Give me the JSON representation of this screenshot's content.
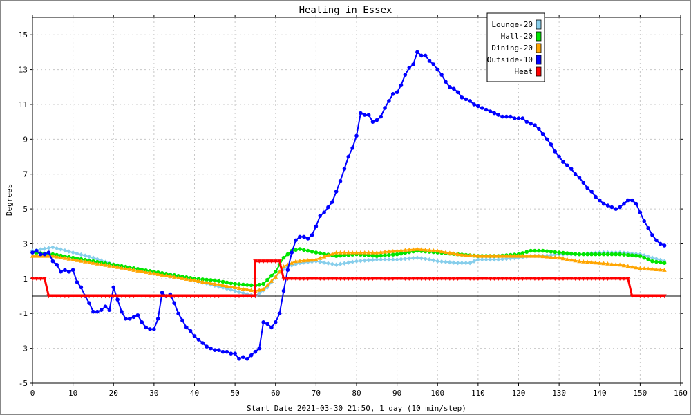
{
  "chart_data": {
    "type": "line",
    "title": "Heating in Essex",
    "xlabel": "Start Date 2021-03-30 21:50, 1 day (10 min/step)",
    "ylabel": "Degrees",
    "xlim": [
      0,
      160
    ],
    "ylim": [
      -5,
      16
    ],
    "xticks": [
      0,
      10,
      20,
      30,
      40,
      50,
      60,
      70,
      80,
      90,
      100,
      110,
      120,
      130,
      140,
      150,
      160
    ],
    "yticks": [
      -5,
      -3,
      -1,
      1,
      3,
      5,
      7,
      9,
      11,
      13,
      15
    ],
    "grid": true,
    "legend_position": "top-right",
    "series": [
      {
        "name": "Lounge-20",
        "color": "#87ceeb",
        "marker": "diamond",
        "points": [
          [
            0,
            2.6
          ],
          [
            5,
            2.8
          ],
          [
            10,
            2.5
          ],
          [
            15,
            2.2
          ],
          [
            20,
            1.8
          ],
          [
            25,
            1.6
          ],
          [
            30,
            1.4
          ],
          [
            35,
            1.2
          ],
          [
            40,
            0.9
          ],
          [
            45,
            0.6
          ],
          [
            50,
            0.3
          ],
          [
            55,
            0.0
          ],
          [
            58,
            0.5
          ],
          [
            61,
            1.4
          ],
          [
            63,
            1.7
          ],
          [
            66,
            1.9
          ],
          [
            70,
            2.0
          ],
          [
            75,
            1.8
          ],
          [
            80,
            2.0
          ],
          [
            85,
            2.1
          ],
          [
            90,
            2.1
          ],
          [
            95,
            2.2
          ],
          [
            98,
            2.1
          ],
          [
            100,
            2.0
          ],
          [
            105,
            1.9
          ],
          [
            108,
            1.9
          ],
          [
            110,
            2.1
          ],
          [
            115,
            2.1
          ],
          [
            120,
            2.2
          ],
          [
            123,
            2.3
          ],
          [
            126,
            2.3
          ],
          [
            130,
            2.4
          ],
          [
            135,
            2.4
          ],
          [
            140,
            2.5
          ],
          [
            145,
            2.5
          ],
          [
            150,
            2.4
          ],
          [
            153,
            2.2
          ],
          [
            156,
            2.0
          ]
        ]
      },
      {
        "name": "Hall-20",
        "color": "#00e600",
        "marker": "circle",
        "points": [
          [
            0,
            2.5
          ],
          [
            5,
            2.4
          ],
          [
            10,
            2.2
          ],
          [
            15,
            2.0
          ],
          [
            20,
            1.8
          ],
          [
            25,
            1.6
          ],
          [
            30,
            1.4
          ],
          [
            35,
            1.2
          ],
          [
            40,
            1.0
          ],
          [
            45,
            0.9
          ],
          [
            50,
            0.7
          ],
          [
            55,
            0.6
          ],
          [
            57,
            0.7
          ],
          [
            60,
            1.4
          ],
          [
            62,
            2.2
          ],
          [
            64,
            2.6
          ],
          [
            66,
            2.7
          ],
          [
            68,
            2.6
          ],
          [
            70,
            2.5
          ],
          [
            75,
            2.3
          ],
          [
            80,
            2.4
          ],
          [
            85,
            2.3
          ],
          [
            90,
            2.4
          ],
          [
            95,
            2.6
          ],
          [
            100,
            2.5
          ],
          [
            105,
            2.4
          ],
          [
            110,
            2.3
          ],
          [
            115,
            2.3
          ],
          [
            120,
            2.4
          ],
          [
            123,
            2.6
          ],
          [
            126,
            2.6
          ],
          [
            130,
            2.5
          ],
          [
            135,
            2.4
          ],
          [
            140,
            2.4
          ],
          [
            145,
            2.4
          ],
          [
            150,
            2.3
          ],
          [
            153,
            2.0
          ],
          [
            156,
            1.9
          ]
        ]
      },
      {
        "name": "Dining-20",
        "color": "#ffa500",
        "marker": "triangle",
        "points": [
          [
            0,
            2.3
          ],
          [
            5,
            2.3
          ],
          [
            10,
            2.1
          ],
          [
            15,
            1.9
          ],
          [
            20,
            1.7
          ],
          [
            25,
            1.5
          ],
          [
            30,
            1.3
          ],
          [
            35,
            1.1
          ],
          [
            40,
            0.9
          ],
          [
            45,
            0.7
          ],
          [
            50,
            0.5
          ],
          [
            55,
            0.3
          ],
          [
            57,
            0.4
          ],
          [
            60,
            1.1
          ],
          [
            62,
            1.7
          ],
          [
            65,
            2.0
          ],
          [
            70,
            2.1
          ],
          [
            75,
            2.5
          ],
          [
            80,
            2.5
          ],
          [
            85,
            2.5
          ],
          [
            90,
            2.6
          ],
          [
            95,
            2.7
          ],
          [
            100,
            2.6
          ],
          [
            105,
            2.4
          ],
          [
            110,
            2.3
          ],
          [
            115,
            2.3
          ],
          [
            120,
            2.3
          ],
          [
            125,
            2.3
          ],
          [
            130,
            2.2
          ],
          [
            135,
            2.0
          ],
          [
            140,
            1.9
          ],
          [
            145,
            1.8
          ],
          [
            150,
            1.6
          ],
          [
            156,
            1.5
          ]
        ]
      },
      {
        "name": "Outside-10",
        "color": "#0000ff",
        "marker": "circle",
        "points": [
          [
            0,
            2.5
          ],
          [
            1,
            2.6
          ],
          [
            2,
            2.4
          ],
          [
            3,
            2.4
          ],
          [
            4,
            2.5
          ],
          [
            5,
            2.0
          ],
          [
            6,
            1.8
          ],
          [
            7,
            1.4
          ],
          [
            8,
            1.5
          ],
          [
            9,
            1.4
          ],
          [
            10,
            1.5
          ],
          [
            11,
            0.8
          ],
          [
            12,
            0.5
          ],
          [
            13,
            0.0
          ],
          [
            14,
            -0.4
          ],
          [
            15,
            -0.9
          ],
          [
            16,
            -0.9
          ],
          [
            17,
            -0.8
          ],
          [
            18,
            -0.6
          ],
          [
            19,
            -0.8
          ],
          [
            20,
            0.5
          ],
          [
            21,
            -0.2
          ],
          [
            22,
            -0.9
          ],
          [
            23,
            -1.3
          ],
          [
            24,
            -1.3
          ],
          [
            25,
            -1.2
          ],
          [
            26,
            -1.1
          ],
          [
            27,
            -1.5
          ],
          [
            28,
            -1.8
          ],
          [
            29,
            -1.9
          ],
          [
            30,
            -1.9
          ],
          [
            31,
            -1.3
          ],
          [
            32,
            0.2
          ],
          [
            33,
            0.0
          ],
          [
            34,
            0.1
          ],
          [
            35,
            -0.4
          ],
          [
            36,
            -1.0
          ],
          [
            37,
            -1.4
          ],
          [
            38,
            -1.8
          ],
          [
            39,
            -2.0
          ],
          [
            40,
            -2.3
          ],
          [
            41,
            -2.5
          ],
          [
            42,
            -2.7
          ],
          [
            43,
            -2.9
          ],
          [
            44,
            -3.0
          ],
          [
            45,
            -3.1
          ],
          [
            46,
            -3.1
          ],
          [
            47,
            -3.2
          ],
          [
            48,
            -3.2
          ],
          [
            49,
            -3.3
          ],
          [
            50,
            -3.3
          ],
          [
            51,
            -3.6
          ],
          [
            52,
            -3.5
          ],
          [
            53,
            -3.6
          ],
          [
            54,
            -3.4
          ],
          [
            55,
            -3.2
          ],
          [
            56,
            -3.0
          ],
          [
            57,
            -1.5
          ],
          [
            58,
            -1.6
          ],
          [
            59,
            -1.8
          ],
          [
            60,
            -1.5
          ],
          [
            61,
            -1.0
          ],
          [
            62,
            0.3
          ],
          [
            63,
            1.5
          ],
          [
            64,
            2.5
          ],
          [
            65,
            3.2
          ],
          [
            66,
            3.4
          ],
          [
            67,
            3.4
          ],
          [
            68,
            3.3
          ],
          [
            69,
            3.5
          ],
          [
            70,
            4.0
          ],
          [
            71,
            4.6
          ],
          [
            72,
            4.8
          ],
          [
            73,
            5.1
          ],
          [
            74,
            5.4
          ],
          [
            75,
            6.0
          ],
          [
            76,
            6.6
          ],
          [
            77,
            7.3
          ],
          [
            78,
            8.0
          ],
          [
            79,
            8.5
          ],
          [
            80,
            9.2
          ],
          [
            81,
            10.5
          ],
          [
            82,
            10.4
          ],
          [
            83,
            10.4
          ],
          [
            84,
            10.0
          ],
          [
            85,
            10.1
          ],
          [
            86,
            10.3
          ],
          [
            87,
            10.8
          ],
          [
            88,
            11.2
          ],
          [
            89,
            11.6
          ],
          [
            90,
            11.7
          ],
          [
            91,
            12.1
          ],
          [
            92,
            12.7
          ],
          [
            93,
            13.1
          ],
          [
            94,
            13.3
          ],
          [
            95,
            14.0
          ],
          [
            96,
            13.8
          ],
          [
            97,
            13.8
          ],
          [
            98,
            13.5
          ],
          [
            99,
            13.3
          ],
          [
            100,
            13.0
          ],
          [
            101,
            12.7
          ],
          [
            102,
            12.3
          ],
          [
            103,
            12.0
          ],
          [
            104,
            11.9
          ],
          [
            105,
            11.7
          ],
          [
            106,
            11.4
          ],
          [
            107,
            11.3
          ],
          [
            108,
            11.2
          ],
          [
            109,
            11.0
          ],
          [
            110,
            10.9
          ],
          [
            111,
            10.8
          ],
          [
            112,
            10.7
          ],
          [
            113,
            10.6
          ],
          [
            114,
            10.5
          ],
          [
            115,
            10.4
          ],
          [
            116,
            10.3
          ],
          [
            117,
            10.3
          ],
          [
            118,
            10.3
          ],
          [
            119,
            10.2
          ],
          [
            120,
            10.2
          ],
          [
            121,
            10.2
          ],
          [
            122,
            10.0
          ],
          [
            123,
            9.9
          ],
          [
            124,
            9.8
          ],
          [
            125,
            9.6
          ],
          [
            126,
            9.3
          ],
          [
            127,
            9.0
          ],
          [
            128,
            8.7
          ],
          [
            129,
            8.3
          ],
          [
            130,
            8.0
          ],
          [
            131,
            7.7
          ],
          [
            132,
            7.5
          ],
          [
            133,
            7.3
          ],
          [
            134,
            7.0
          ],
          [
            135,
            6.8
          ],
          [
            136,
            6.5
          ],
          [
            137,
            6.2
          ],
          [
            138,
            6.0
          ],
          [
            139,
            5.7
          ],
          [
            140,
            5.5
          ],
          [
            141,
            5.3
          ],
          [
            142,
            5.2
          ],
          [
            143,
            5.1
          ],
          [
            144,
            5.0
          ],
          [
            145,
            5.1
          ],
          [
            146,
            5.3
          ],
          [
            147,
            5.5
          ],
          [
            148,
            5.5
          ],
          [
            149,
            5.3
          ],
          [
            150,
            4.8
          ],
          [
            151,
            4.3
          ],
          [
            152,
            3.9
          ],
          [
            153,
            3.5
          ],
          [
            154,
            3.2
          ],
          [
            155,
            3.0
          ],
          [
            156,
            2.9
          ]
        ]
      },
      {
        "name": "Heat",
        "color": "#ff0000",
        "marker": "triangle-down",
        "step": true,
        "points": [
          [
            0,
            1.0
          ],
          [
            3,
            1.0
          ],
          [
            4,
            0.0
          ],
          [
            55,
            0.0
          ],
          [
            55,
            2.0
          ],
          [
            61,
            2.0
          ],
          [
            62,
            1.0
          ],
          [
            147,
            1.0
          ],
          [
            148,
            0.0
          ],
          [
            156,
            0.0
          ]
        ]
      }
    ]
  }
}
